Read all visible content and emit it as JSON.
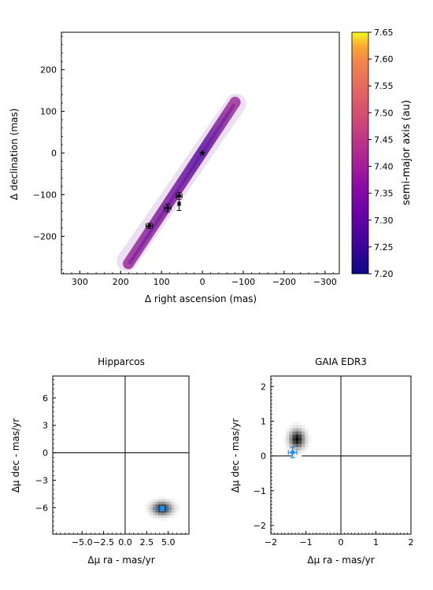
{
  "chart_data": [
    {
      "id": "orbit",
      "type": "scatter",
      "xlabel": "Δ right ascension (mas)",
      "ylabel": "Δ declination (mas)",
      "xlim": [
        345,
        -335
      ],
      "ylim": [
        -290,
        290
      ],
      "x_ticks": [
        300,
        200,
        100,
        0,
        -100,
        -200,
        -300
      ],
      "x_tick_labels": [
        "300",
        "200",
        "100",
        "0",
        "−100",
        "−200",
        "−300"
      ],
      "y_ticks": [
        -200,
        -100,
        0,
        100,
        200
      ],
      "y_tick_labels": [
        "−200",
        "−100",
        "0",
        "100",
        "200"
      ],
      "grid": false,
      "star": {
        "x": 0,
        "y": 0,
        "marker": "star"
      },
      "orbit_band": {
        "start": {
          "x": 185,
          "y": -260
        },
        "end": {
          "x": -82,
          "y": 118
        },
        "color_low": "#2a0593",
        "color_high": "#9c2a9a"
      },
      "astrometry_points": [
        {
          "x": 130,
          "y": -175,
          "xerr": 8,
          "yerr": 6
        },
        {
          "x": 85,
          "y": -132,
          "xerr": 8,
          "yerr": 9
        },
        {
          "x": 57,
          "y": -103,
          "xerr": 7,
          "yerr": 8
        },
        {
          "x": 57,
          "y": -122,
          "xerr": 3,
          "yerr": 16
        }
      ]
    },
    {
      "id": "colorbar",
      "type": "heatmap",
      "label": "semi-major axis (au)",
      "colormap": "plasma",
      "range": [
        7.2,
        7.65
      ],
      "ticks": [
        7.2,
        7.25,
        7.3,
        7.35,
        7.4,
        7.45,
        7.5,
        7.55,
        7.6,
        7.65
      ],
      "tick_labels": [
        "7.20",
        "7.25",
        "7.30",
        "7.35",
        "7.40",
        "7.45",
        "7.50",
        "7.55",
        "7.60",
        "7.65"
      ]
    },
    {
      "id": "hipparcos",
      "type": "heatmap",
      "title": "Hipparcos",
      "xlabel": "Δμ ra - mas/yr",
      "ylabel": "Δμ dec - mas/yr",
      "xlim": [
        -8.4,
        7.4
      ],
      "ylim": [
        -8.9,
        8.4
      ],
      "x_ticks": [
        -5,
        -2.5,
        0,
        2.5,
        5
      ],
      "x_tick_labels": [
        "−5.0",
        "−2.5",
        "0.0",
        "2.5",
        "5.0"
      ],
      "y_ticks": [
        -6,
        -3,
        0,
        3,
        6
      ],
      "y_tick_labels": [
        "−6",
        "−3",
        "0",
        "3",
        "6"
      ],
      "density_center": {
        "x": 4.3,
        "y": -6.1
      },
      "measurement": {
        "x": 4.3,
        "y": -6.1,
        "xerr": 0.7,
        "yerr": 0.25,
        "color": "#1e90ff"
      }
    },
    {
      "id": "gaia",
      "type": "heatmap",
      "title": "GAIA EDR3",
      "xlabel": "Δμ ra - mas/yr",
      "ylabel": "Δμ dec - mas/yr",
      "xlim": [
        -2,
        2
      ],
      "ylim": [
        -2.25,
        2.3
      ],
      "x_ticks": [
        -2,
        -1,
        0,
        1,
        2
      ],
      "x_tick_labels": [
        "−2",
        "−1",
        "0",
        "1",
        "2"
      ],
      "y_ticks": [
        -2,
        -1,
        0,
        1,
        2
      ],
      "y_tick_labels": [
        "−2",
        "−1",
        "0",
        "1",
        "2"
      ],
      "density_center": {
        "x": -1.25,
        "y": 0.48
      },
      "measurement": {
        "x": -1.38,
        "y": 0.1,
        "xerr": 0.12,
        "yerr": 0.15,
        "color": "#1e90ff"
      }
    }
  ]
}
